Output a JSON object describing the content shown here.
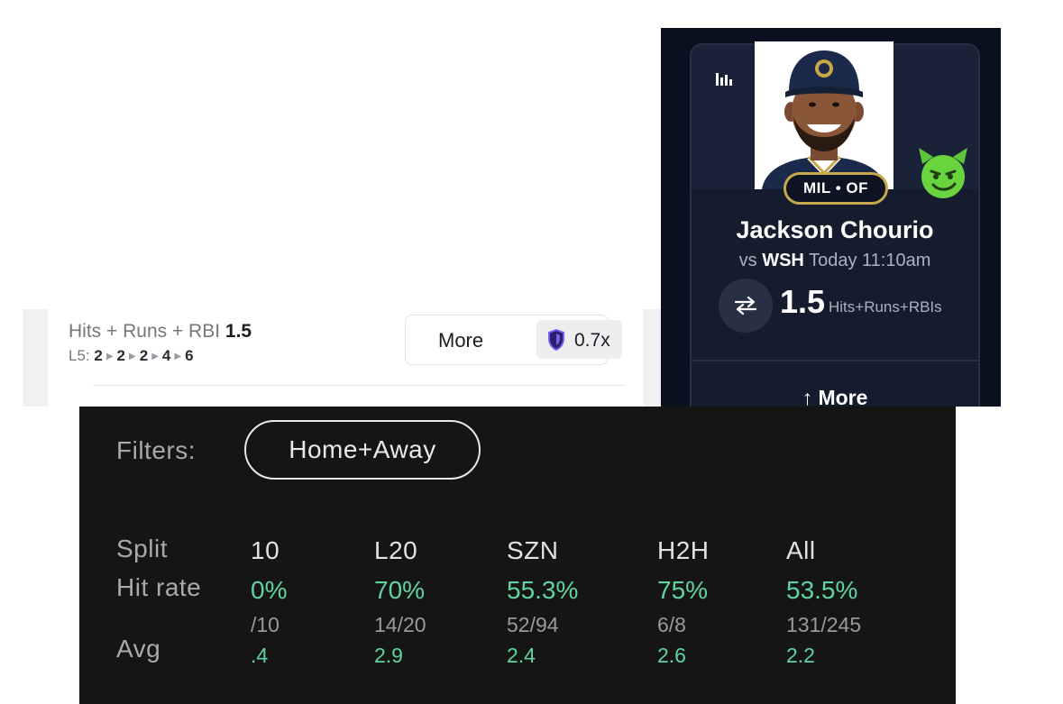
{
  "prop_row": {
    "title": "Hits + Runs + RBI",
    "line": "1.5",
    "last5_label": "L5:",
    "last5": [
      "2",
      "2",
      "2",
      "4",
      "6"
    ],
    "more_label": "More",
    "multiplier": "0.7x"
  },
  "player_card": {
    "team_position": "MIL • OF",
    "name": "Jackson Chourio",
    "matchup_prefix": "vs",
    "opponent": "WSH",
    "game_time": "Today 11:10am",
    "line": "1.5",
    "stat": "Hits+Runs+RBIs",
    "more_label": "↑ More",
    "icons": [
      "bar-chart-icon",
      "swap-icon",
      "devil-emoji-icon"
    ],
    "colors": {
      "accent_gold": "#c9a84b",
      "card_bg": "#151c2d"
    }
  },
  "splits": {
    "filters_label": "Filters:",
    "filter_value": "Home+Away",
    "row_labels": {
      "split": "Split",
      "hit_rate": "Hit rate",
      "avg": "Avg"
    },
    "columns": [
      {
        "split": "10",
        "hit_rate": "0%",
        "fraction": "/10",
        "avg": ".4"
      },
      {
        "split": "L20",
        "hit_rate": "70%",
        "fraction": "14/20",
        "avg": "2.9"
      },
      {
        "split": "SZN",
        "hit_rate": "55.3%",
        "fraction": "52/94",
        "avg": "2.4"
      },
      {
        "split": "H2H",
        "hit_rate": "75%",
        "fraction": "6/8",
        "avg": "2.6"
      },
      {
        "split": "All",
        "hit_rate": "53.5%",
        "fraction": "131/245",
        "avg": "2.2"
      }
    ],
    "colors": {
      "positive": "#5fd4a0",
      "panel_bg": "#151515"
    }
  }
}
